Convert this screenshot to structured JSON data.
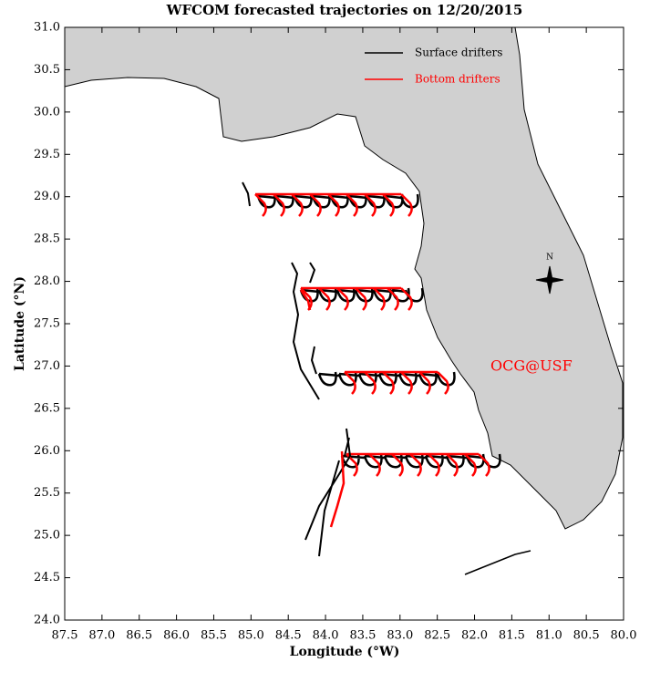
{
  "chart_data": {
    "type": "map",
    "title": "WFCOM forecasted trajectories on 12/20/2015",
    "x_label": "Longitude (°W)",
    "y_label": "Latitude (°N)",
    "xlim": [
      87.5,
      80.0
    ],
    "ylim": [
      24.0,
      31.0
    ],
    "xticks": [
      {
        "value": 87.5,
        "label": "87.5"
      },
      {
        "value": 87,
        "label": "87.0"
      },
      {
        "value": 86.5,
        "label": "86.5"
      },
      {
        "value": 86,
        "label": "86.0"
      },
      {
        "value": 85.5,
        "label": "85.5"
      },
      {
        "value": 85,
        "label": "85.0"
      },
      {
        "value": 84.5,
        "label": "84.5"
      },
      {
        "value": 84,
        "label": "84.0"
      },
      {
        "value": 83.5,
        "label": "83.5"
      },
      {
        "value": 83,
        "label": "83.0"
      },
      {
        "value": 82.5,
        "label": "82.5"
      },
      {
        "value": 82,
        "label": "82.0"
      },
      {
        "value": 81.5,
        "label": "81.5"
      },
      {
        "value": 81,
        "label": "81.0"
      },
      {
        "value": 80.5,
        "label": "80.5"
      },
      {
        "value": 80,
        "label": "80.0"
      }
    ],
    "yticks": [
      {
        "value": 24,
        "label": "24.0"
      },
      {
        "value": 24.5,
        "label": "24.5"
      },
      {
        "value": 25,
        "label": "25.0"
      },
      {
        "value": 25.5,
        "label": "25.5"
      },
      {
        "value": 26,
        "label": "26.0"
      },
      {
        "value": 26.5,
        "label": "26.5"
      },
      {
        "value": 27,
        "label": "27.0"
      },
      {
        "value": 27.5,
        "label": "27.5"
      },
      {
        "value": 28,
        "label": "28.0"
      },
      {
        "value": 28.5,
        "label": "28.5"
      },
      {
        "value": 29,
        "label": "29.0"
      },
      {
        "value": 29.5,
        "label": "29.5"
      },
      {
        "value": 30,
        "label": "30.0"
      },
      {
        "value": 30.5,
        "label": "30.5"
      },
      {
        "value": 31,
        "label": "31.0"
      }
    ],
    "series": [
      {
        "name": "Surface drifters",
        "color": "#000000"
      },
      {
        "name": "Bottom drifters",
        "color": "#ff0000"
      }
    ],
    "annotation": "OCG@USF",
    "compass_label": "N"
  }
}
